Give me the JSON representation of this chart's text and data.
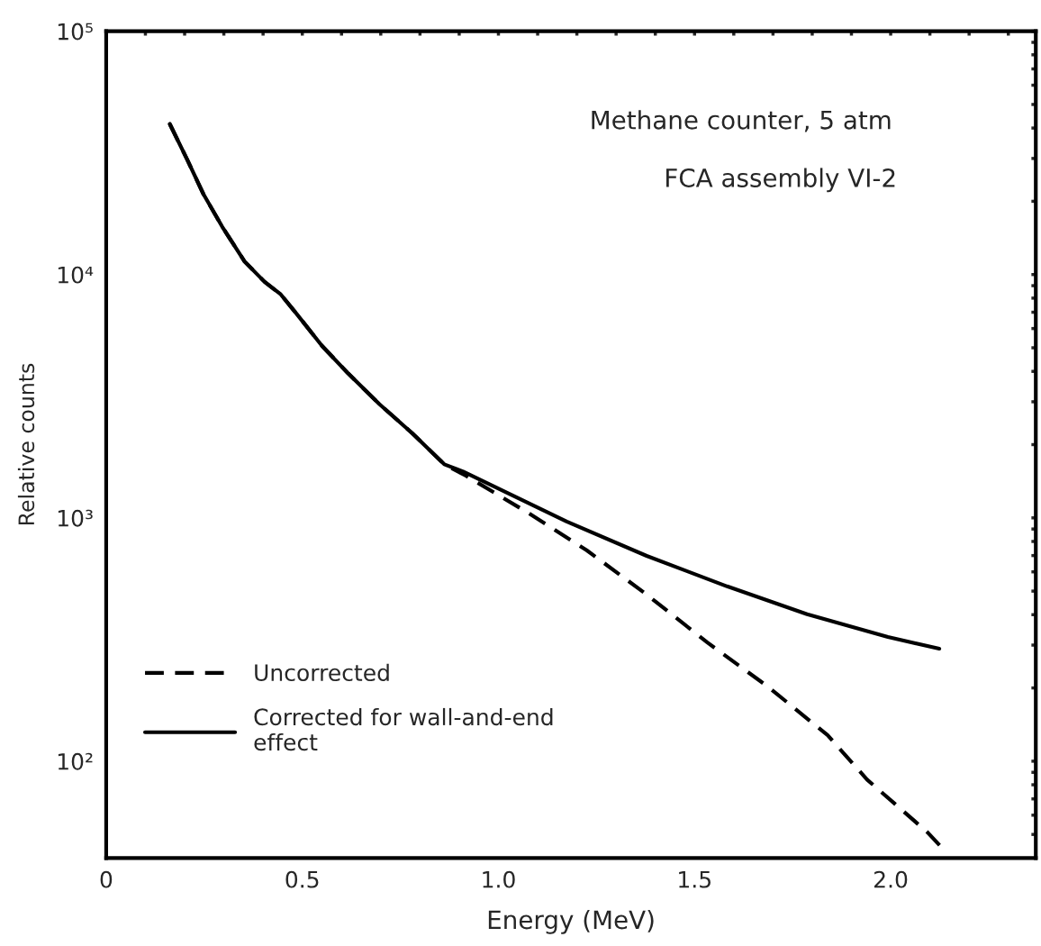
{
  "chart_data": {
    "type": "line",
    "xlabel": "Energy (MeV)",
    "ylabel": "Relative counts",
    "annotations": [
      "Methane counter, 5 atm",
      "FCA assembly VI-2"
    ],
    "log": "y",
    "legend": "lower left",
    "grid": false,
    "xlim": [
      0,
      2.37
    ],
    "ylim": [
      40,
      100000
    ],
    "xticks": [
      0,
      {
        "value": 0.1,
        "label": null
      },
      {
        "value": 0.2,
        "label": null
      },
      {
        "value": 0.3,
        "label": null
      },
      {
        "value": 0.4,
        "label": null
      },
      0.5,
      {
        "value": 0.6,
        "label": null
      },
      {
        "value": 0.7,
        "label": null
      },
      {
        "value": 0.8,
        "label": null
      },
      {
        "value": 0.9,
        "label": null
      },
      {
        "value": 1.0,
        "label": "1.0"
      },
      {
        "value": 1.1,
        "label": null
      },
      {
        "value": 1.2,
        "label": null
      },
      {
        "value": 1.3,
        "label": null
      },
      {
        "value": 1.4,
        "label": null
      },
      1.5,
      {
        "value": 1.6,
        "label": null
      },
      {
        "value": 1.7,
        "label": null
      },
      {
        "value": 1.8,
        "label": null
      },
      {
        "value": 1.9,
        "label": null
      },
      {
        "value": 2.0,
        "label": "2.0"
      },
      {
        "value": 2.1,
        "label": null
      },
      {
        "value": 2.2,
        "label": null
      },
      {
        "value": 2.3,
        "label": null
      }
    ],
    "yticks": [
      {
        "value": 50,
        "label": null
      },
      {
        "value": 60,
        "label": null
      },
      {
        "value": 70,
        "label": null
      },
      {
        "value": 80,
        "label": null
      },
      {
        "value": 90,
        "label": null
      },
      {
        "value": 100,
        "label": "10²"
      },
      {
        "value": 200,
        "label": null
      },
      {
        "value": 300,
        "label": null
      },
      {
        "value": 400,
        "label": null
      },
      {
        "value": 500,
        "label": null
      },
      {
        "value": 600,
        "label": null
      },
      {
        "value": 700,
        "label": null
      },
      {
        "value": 800,
        "label": null
      },
      {
        "value": 900,
        "label": null
      },
      {
        "value": 1000,
        "label": "10³"
      },
      {
        "value": 2000,
        "label": null
      },
      {
        "value": 3000,
        "label": null
      },
      {
        "value": 4000,
        "label": null
      },
      {
        "value": 5000,
        "label": null
      },
      {
        "value": 6000,
        "label": null
      },
      {
        "value": 7000,
        "label": null
      },
      {
        "value": 8000,
        "label": null
      },
      {
        "value": 9000,
        "label": null
      },
      {
        "value": 10000,
        "label": "10⁴"
      },
      {
        "value": 20000,
        "label": null
      },
      {
        "value": 30000,
        "label": null
      },
      {
        "value": 40000,
        "label": null
      },
      {
        "value": 50000,
        "label": null
      },
      {
        "value": 60000,
        "label": null
      },
      {
        "value": 70000,
        "label": null
      },
      {
        "value": 80000,
        "label": null
      },
      {
        "value": 90000,
        "label": null
      },
      {
        "value": 100000,
        "label": "10⁵"
      }
    ],
    "series": [
      {
        "name": "Uncorrected",
        "color": "#000000",
        "line_style": "dashed",
        "x": [
          0.162,
          0.206,
          0.248,
          0.296,
          0.353,
          0.404,
          0.445,
          0.486,
          0.55,
          0.617,
          0.697,
          0.78,
          0.862,
          0.917,
          1.071,
          1.225,
          1.378,
          1.532,
          1.686,
          1.839,
          1.94,
          2.094,
          2.131
        ],
        "values": [
          41600,
          29800,
          21400,
          15700,
          11300,
          9330,
          8290,
          6880,
          5100,
          3920,
          2930,
          2230,
          1660,
          1490,
          1060,
          736,
          484,
          308,
          203,
          128,
          84,
          51,
          44
        ]
      },
      {
        "name": "Corrected for wall-and-end\neffect",
        "color": "#000000",
        "line_style": "solid",
        "x": [
          0.162,
          0.206,
          0.248,
          0.296,
          0.353,
          0.404,
          0.445,
          0.486,
          0.55,
          0.617,
          0.697,
          0.78,
          0.862,
          0.91,
          1.174,
          1.378,
          1.583,
          1.787,
          1.993,
          2.124
        ],
        "values": [
          41600,
          29800,
          21400,
          15700,
          11300,
          9330,
          8290,
          6880,
          5100,
          3920,
          2930,
          2230,
          1660,
          1550,
          966,
          698,
          523,
          402,
          324,
          290
        ]
      }
    ]
  }
}
